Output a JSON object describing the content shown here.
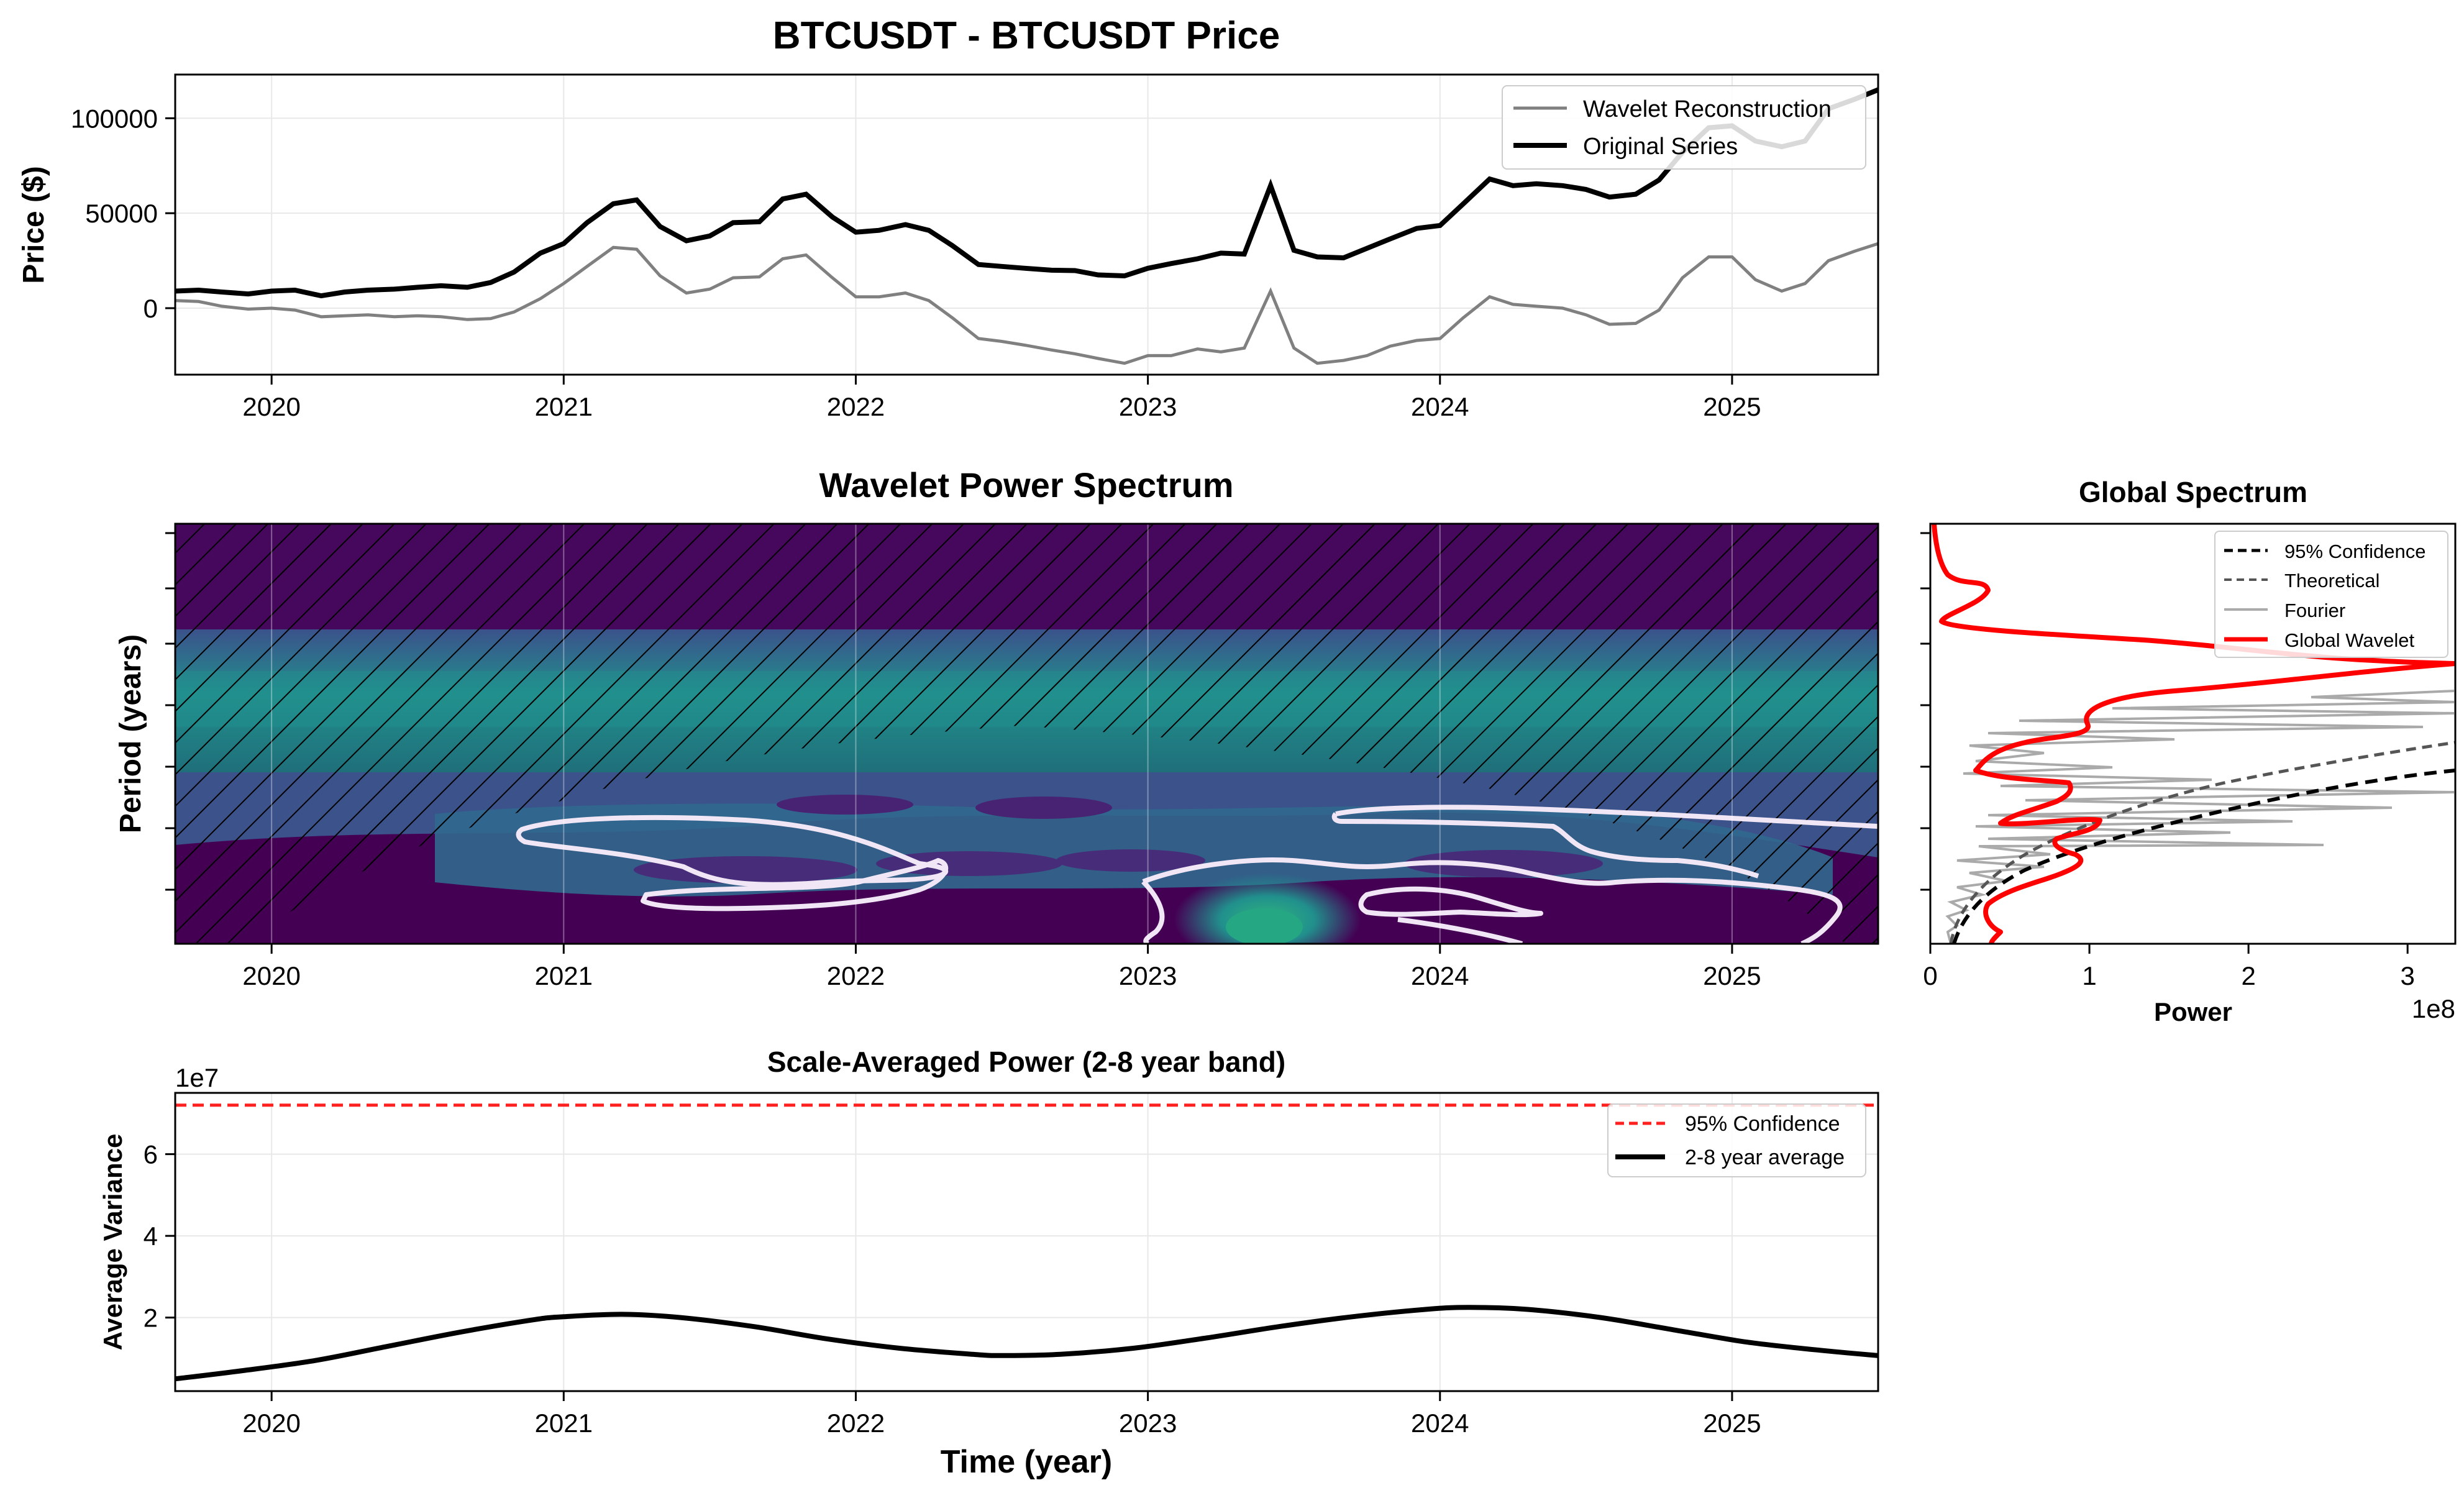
{
  "colors": {
    "original": "#000000",
    "reconstruction": "#808080",
    "global_wavelet": "#ff0000",
    "confidence_red": "#ff2020",
    "viridis_dark": "#440154",
    "viridis_mid": "#3b528b",
    "viridis_teal": "#21908d",
    "viridis_green": "#27ad81",
    "contour": "#f0e6f5"
  },
  "chart_data": [
    {
      "id": "price",
      "type": "line",
      "title": "BTCUSDT - BTCUSDT Price",
      "xlabel": "",
      "ylabel": "Price ($)",
      "xlim": [
        2019.67,
        2025.5
      ],
      "ylim": [
        -35000,
        123000
      ],
      "x_ticks": [
        2020,
        2021,
        2022,
        2023,
        2024,
        2025
      ],
      "x_tick_labels": [
        "2020",
        "2021",
        "2022",
        "2023",
        "2024",
        "2025"
      ],
      "y_ticks": [
        0,
        50000,
        100000
      ],
      "y_tick_labels": [
        "0",
        "50000",
        "100000"
      ],
      "grid": true,
      "legend_position": "top-right",
      "series": [
        {
          "name": "Wavelet Reconstruction",
          "x": [
            2019.67,
            2019.75,
            2019.83,
            2019.92,
            2020.0,
            2020.08,
            2020.17,
            2020.25,
            2020.33,
            2020.42,
            2020.5,
            2020.58,
            2020.67,
            2020.75,
            2020.83,
            2020.92,
            2021.0,
            2021.08,
            2021.17,
            2021.25,
            2021.33,
            2021.42,
            2021.5,
            2021.58,
            2021.67,
            2021.75,
            2021.83,
            2021.92,
            2022.0,
            2022.08,
            2022.17,
            2022.25,
            2022.33,
            2022.42,
            2022.5,
            2022.58,
            2022.67,
            2022.75,
            2022.83,
            2022.92,
            2023.0,
            2023.08,
            2023.17,
            2023.25,
            2023.33,
            2023.42,
            2023.5,
            2023.58,
            2023.67,
            2023.75,
            2023.83,
            2023.92,
            2024.0,
            2024.08,
            2024.17,
            2024.25,
            2024.33,
            2024.42,
            2024.5,
            2024.58,
            2024.67,
            2024.75,
            2024.83,
            2024.92,
            2025.0,
            2025.08,
            2025.17,
            2025.25,
            2025.33,
            2025.42,
            2025.5
          ],
          "y": [
            4000,
            3500,
            1000,
            -500,
            0,
            -1000,
            -4500,
            -4000,
            -3500,
            -4500,
            -4000,
            -4500,
            -6000,
            -5500,
            -2000,
            5000,
            13000,
            22000,
            32000,
            31000,
            17000,
            8000,
            10000,
            16000,
            16500,
            26000,
            28000,
            16000,
            6000,
            6000,
            8000,
            4000,
            -5000,
            -16000,
            -17500,
            -19500,
            -22000,
            -24000,
            -26500,
            -29000,
            -25000,
            -25000,
            -21500,
            -23000,
            -21000,
            9000,
            -21000,
            -29000,
            -27500,
            -25000,
            -20000,
            -17000,
            -16000,
            -5000,
            6000,
            2000,
            1000,
            0,
            -3500,
            -8500,
            -8000,
            -1000,
            16000,
            27000,
            27000,
            15000,
            9000,
            13000,
            25000,
            30000,
            34000
          ]
        },
        {
          "name": "Original Series",
          "x": [
            2019.67,
            2019.75,
            2019.83,
            2019.92,
            2020.0,
            2020.08,
            2020.17,
            2020.25,
            2020.33,
            2020.42,
            2020.5,
            2020.58,
            2020.67,
            2020.75,
            2020.83,
            2020.92,
            2021.0,
            2021.08,
            2021.17,
            2021.25,
            2021.33,
            2021.42,
            2021.5,
            2021.58,
            2021.67,
            2021.75,
            2021.83,
            2021.92,
            2022.0,
            2022.08,
            2022.17,
            2022.25,
            2022.33,
            2022.42,
            2022.5,
            2022.58,
            2022.67,
            2022.75,
            2022.83,
            2022.92,
            2023.0,
            2023.08,
            2023.17,
            2023.25,
            2023.33,
            2023.42,
            2023.5,
            2023.58,
            2023.67,
            2023.75,
            2023.83,
            2023.92,
            2024.0,
            2024.08,
            2024.17,
            2024.25,
            2024.33,
            2024.42,
            2024.5,
            2024.58,
            2024.67,
            2024.75,
            2024.83,
            2024.92,
            2025.0,
            2025.08,
            2025.17,
            2025.25,
            2025.33,
            2025.42,
            2025.5
          ],
          "y": [
            9000,
            9500,
            8500,
            7500,
            9000,
            9500,
            6500,
            8500,
            9500,
            10000,
            11000,
            11800,
            11000,
            13500,
            19000,
            29000,
            34000,
            45000,
            55000,
            57000,
            43000,
            35500,
            38000,
            45000,
            45500,
            57500,
            60000,
            48000,
            40000,
            41000,
            44000,
            41000,
            33000,
            23000,
            22000,
            21000,
            20000,
            19800,
            17500,
            17000,
            21000,
            23500,
            26000,
            29000,
            28500,
            64500,
            30500,
            27000,
            26500,
            31500,
            36500,
            42000,
            43500,
            55000,
            68000,
            64500,
            65500,
            64500,
            62500,
            58500,
            60000,
            67500,
            82000,
            95000,
            96000,
            88000,
            85000,
            88000,
            105000,
            110000,
            115000
          ]
        }
      ]
    },
    {
      "id": "wavelet",
      "type": "heatmap",
      "title": "Wavelet Power Spectrum",
      "xlabel": "",
      "ylabel": "Period (years)",
      "xlim": [
        2019.67,
        2025.5
      ],
      "x_ticks": [
        2020,
        2021,
        2022,
        2023,
        2024,
        2025
      ],
      "x_tick_labels": [
        "2020",
        "2021",
        "2022",
        "2023",
        "2024",
        "2025"
      ],
      "y_tick_labels": [],
      "colormap": "viridis",
      "features": [
        {
          "label": "significant band, upper periods",
          "color_level": "teal"
        },
        {
          "label": "low-power region, low periods",
          "color_level": "dark purple"
        },
        {
          "label": "power peak",
          "center_year": 2023.4,
          "color_level": "green"
        },
        {
          "label": "cone of influence",
          "style": "hatched"
        },
        {
          "label": "95% significance contours",
          "color": "white"
        }
      ],
      "grid": true
    },
    {
      "id": "global",
      "type": "line",
      "title": "Global Spectrum",
      "xlabel": "Power",
      "ylabel": "",
      "xlim": [
        0,
        3.3
      ],
      "x_ticks": [
        0,
        1,
        2,
        3
      ],
      "x_tick_labels": [
        "0",
        "1",
        "2",
        "3"
      ],
      "x_scale_label": "1e8",
      "legend_position": "top-right",
      "series": [
        {
          "name": "95% Confidence",
          "style": "dashed",
          "color": "#000000"
        },
        {
          "name": "Theoretical",
          "style": "dashed",
          "color": "#555555"
        },
        {
          "name": "Fourier",
          "style": "solid",
          "color": "#aaaaaa"
        },
        {
          "name": "Global Wavelet",
          "style": "solid",
          "color": "#ff0000"
        }
      ]
    },
    {
      "id": "scale_avg",
      "type": "line",
      "title": "Scale-Averaged Power (2-8 year band)",
      "xlabel": "Time (year)",
      "ylabel": "Average Variance",
      "xlim": [
        2019.67,
        2025.5
      ],
      "ylim": [
        0.2,
        7.5
      ],
      "y_scale_label": "1e7",
      "x_ticks": [
        2020,
        2021,
        2022,
        2023,
        2024,
        2025
      ],
      "x_tick_labels": [
        "2020",
        "2021",
        "2022",
        "2023",
        "2024",
        "2025"
      ],
      "y_ticks": [
        2,
        4,
        6
      ],
      "y_tick_labels": [
        "2",
        "4",
        "6"
      ],
      "grid": true,
      "legend_position": "top-right",
      "series": [
        {
          "name": "95% Confidence",
          "style": "dashed",
          "y_constant": 7.2
        },
        {
          "name": "2-8 year average",
          "x": [
            2019.67,
            2019.9,
            2020.15,
            2020.4,
            2020.65,
            2020.9,
            2021.0,
            2021.2,
            2021.4,
            2021.65,
            2021.9,
            2022.15,
            2022.4,
            2022.5,
            2022.7,
            2022.95,
            2023.2,
            2023.45,
            2023.7,
            2023.95,
            2024.1,
            2024.3,
            2024.55,
            2024.8,
            2025.05,
            2025.3,
            2025.5
          ],
          "y": [
            0.5,
            0.7,
            0.95,
            1.3,
            1.65,
            1.95,
            2.02,
            2.08,
            2.0,
            1.78,
            1.48,
            1.25,
            1.1,
            1.07,
            1.1,
            1.25,
            1.5,
            1.78,
            2.02,
            2.2,
            2.25,
            2.2,
            2.0,
            1.7,
            1.4,
            1.2,
            1.07
          ]
        }
      ]
    }
  ]
}
